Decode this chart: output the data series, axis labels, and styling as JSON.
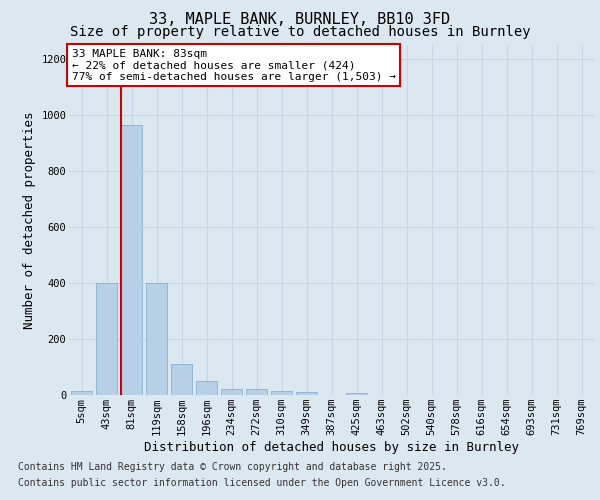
{
  "title_line1": "33, MAPLE BANK, BURNLEY, BB10 3FD",
  "title_line2": "Size of property relative to detached houses in Burnley",
  "xlabel": "Distribution of detached houses by size in Burnley",
  "ylabel": "Number of detached properties",
  "categories": [
    "5sqm",
    "43sqm",
    "81sqm",
    "119sqm",
    "158sqm",
    "196sqm",
    "234sqm",
    "272sqm",
    "310sqm",
    "349sqm",
    "387sqm",
    "425sqm",
    "463sqm",
    "502sqm",
    "540sqm",
    "578sqm",
    "616sqm",
    "654sqm",
    "693sqm",
    "731sqm",
    "769sqm"
  ],
  "values": [
    15,
    400,
    965,
    400,
    110,
    50,
    22,
    22,
    13,
    10,
    0,
    7,
    0,
    0,
    0,
    0,
    0,
    0,
    0,
    0,
    0
  ],
  "bar_color": "#b8cfe8",
  "bar_edge_color": "#7aaad0",
  "grid_color": "#c8d4e8",
  "background_color": "#dce8f0",
  "plot_bg_color": "#dce8f0",
  "vline_color": "#cc0000",
  "annotation_text": "33 MAPLE BANK: 83sqm\n← 22% of detached houses are smaller (424)\n77% of semi-detached houses are larger (1,503) →",
  "ylim": [
    0,
    1250
  ],
  "yticks": [
    0,
    200,
    400,
    600,
    800,
    1000,
    1200
  ],
  "footnote_line1": "Contains HM Land Registry data © Crown copyright and database right 2025.",
  "footnote_line2": "Contains public sector information licensed under the Open Government Licence v3.0.",
  "title_fontsize": 11,
  "subtitle_fontsize": 10,
  "tick_fontsize": 7.5,
  "label_fontsize": 9,
  "footnote_fontsize": 7,
  "annot_fontsize": 8
}
